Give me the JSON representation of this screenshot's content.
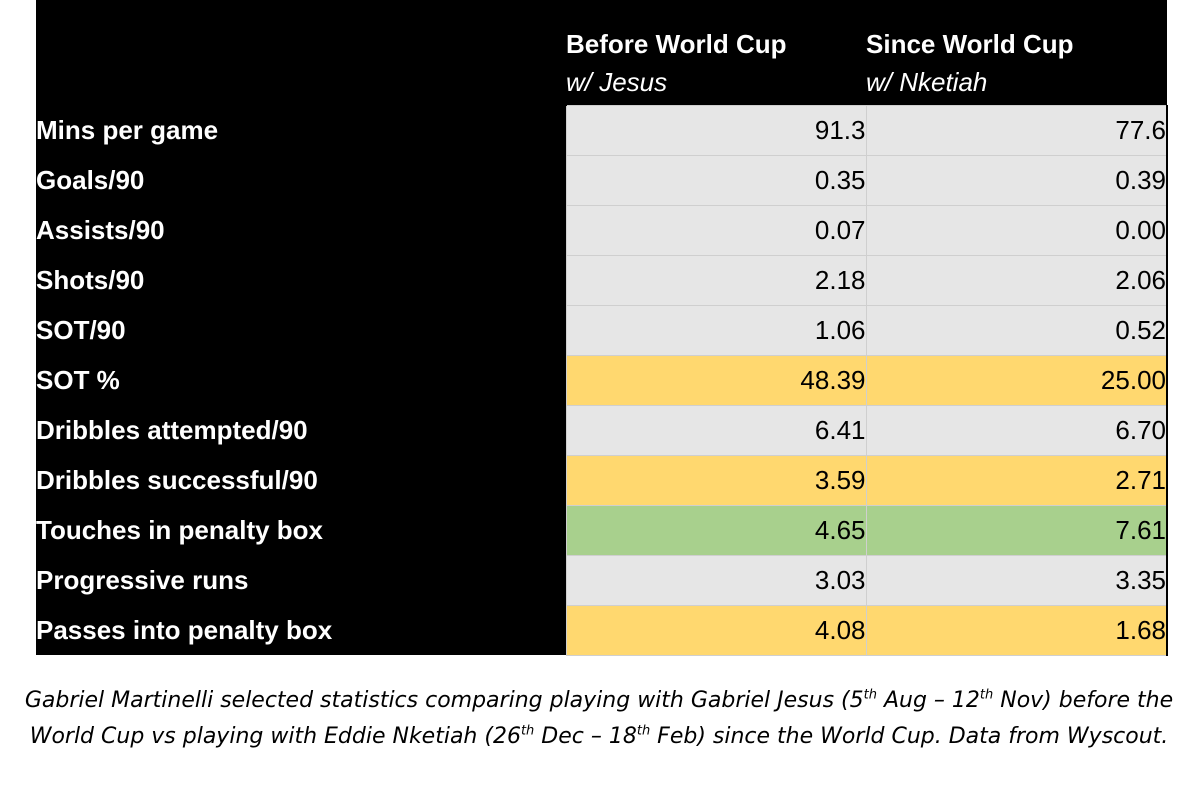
{
  "colors": {
    "header_bg": "#000000",
    "header_text": "#ffffff",
    "grey": "#e6e6e6",
    "yellow": "#ffd86f",
    "green": "#a8d08d"
  },
  "chart_data": {
    "type": "table",
    "columns": [
      {
        "title": "Before World Cup",
        "subtitle": "w/ Jesus"
      },
      {
        "title": "Since World Cup",
        "subtitle": "w/ Nketiah"
      }
    ],
    "rows": [
      {
        "metric": "Mins per game",
        "values": [
          "91.3",
          "77.6"
        ],
        "highlight": "grey"
      },
      {
        "metric": "Goals/90",
        "values": [
          "0.35",
          "0.39"
        ],
        "highlight": "grey"
      },
      {
        "metric": "Assists/90",
        "values": [
          "0.07",
          "0.00"
        ],
        "highlight": "grey"
      },
      {
        "metric": "Shots/90",
        "values": [
          "2.18",
          "2.06"
        ],
        "highlight": "grey"
      },
      {
        "metric": "SOT/90",
        "values": [
          "1.06",
          "0.52"
        ],
        "highlight": "grey"
      },
      {
        "metric": "SOT %",
        "values": [
          "48.39",
          "25.00"
        ],
        "highlight": "yellow"
      },
      {
        "metric": "Dribbles attempted/90",
        "values": [
          "6.41",
          "6.70"
        ],
        "highlight": "grey"
      },
      {
        "metric": "Dribbles successful/90",
        "values": [
          "3.59",
          "2.71"
        ],
        "highlight": "yellow"
      },
      {
        "metric": "Touches in penalty box",
        "values": [
          "4.65",
          "7.61"
        ],
        "highlight": "green"
      },
      {
        "metric": "Progressive runs",
        "values": [
          "3.03",
          "3.35"
        ],
        "highlight": "grey"
      },
      {
        "metric": "Passes into penalty box",
        "values": [
          "4.08",
          "1.68"
        ],
        "highlight": "yellow"
      }
    ]
  },
  "caption": {
    "p1": "Gabriel Martinelli selected statistics comparing playing with Gabriel Jesus (5",
    "s1": "th",
    "p2": " Aug – 12",
    "s2": "th",
    "p3": " Nov) before the World Cup vs playing with Eddie Nketiah (26",
    "s3": "th",
    "p4": " Dec – 18",
    "s4": "th",
    "p5": " Feb) since the World Cup. Data from Wyscout."
  }
}
